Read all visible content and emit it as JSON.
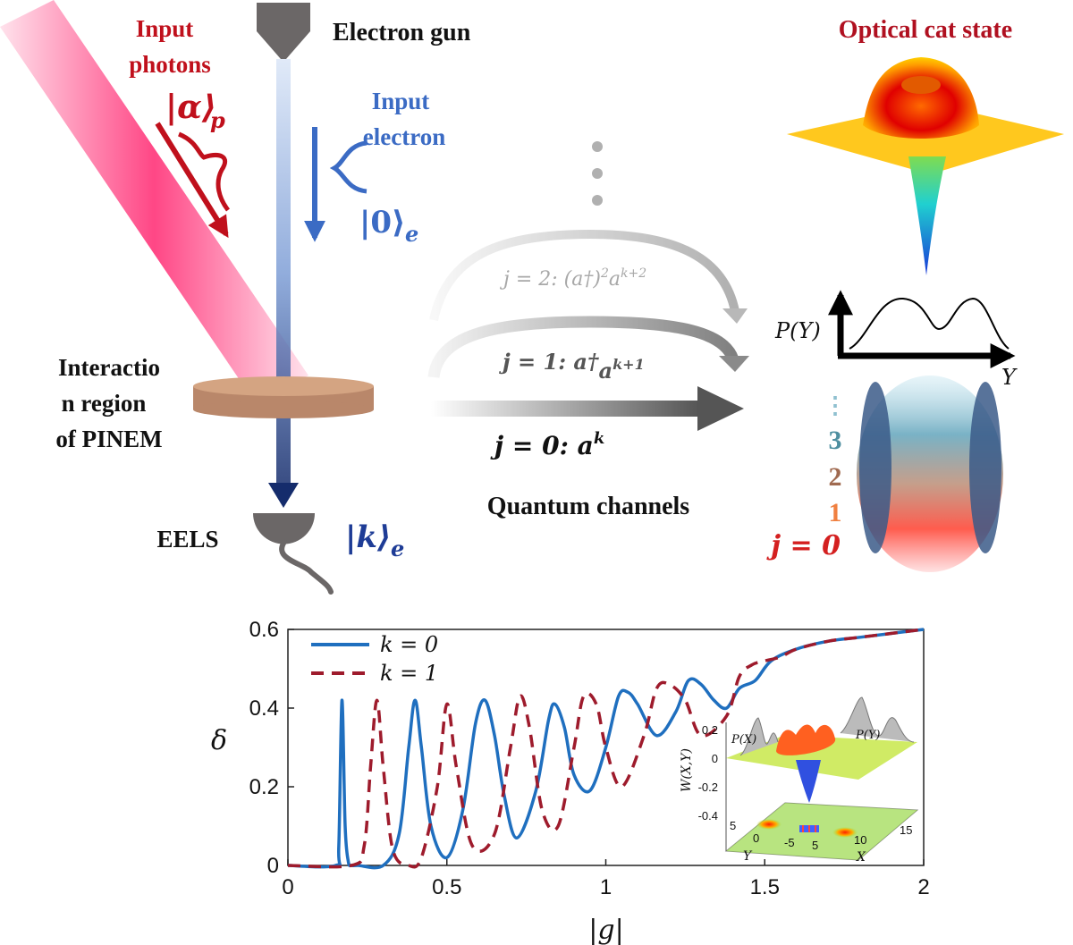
{
  "diagram": {
    "labels": {
      "input_photons_1": "Input",
      "input_photons_2": "photons",
      "input_photons_ket": "|α⟩",
      "input_photons_ket_sub": "p",
      "electron_gun": "Electron gun",
      "input_electron_1": "Input",
      "input_electron_2": "electron",
      "input_electron_ket": "|0⟩",
      "input_electron_ket_sub": "e",
      "interaction_1": "Interactio",
      "interaction_2": "n region",
      "interaction_3": "of PINEM",
      "eels": "EELS",
      "output_ket": "|k⟩",
      "output_ket_sub": "e",
      "optical_cat_state": "Optical cat state",
      "quantum_channels": "Quantum channels",
      "py_axis_label": "P(Y)",
      "y_axis_label": "Y"
    },
    "channels": [
      {
        "j_label": "j = 2:",
        "op": "(a†)",
        "op_sup": "2",
        "op2": "a",
        "op2_sup": "k+2",
        "color": "#a8a8a8"
      },
      {
        "j_label": "j = 1:",
        "op": "a†",
        "op_sup": "",
        "op2": "a",
        "op2_sup": "k+1",
        "color": "#555555"
      },
      {
        "j_label": "j = 0:",
        "op": "a",
        "op_sup": "k",
        "op2": "",
        "op2_sup": "",
        "color": "#111111"
      }
    ],
    "j_levels": [
      {
        "label": "⋮",
        "color": "#8fc0d0"
      },
      {
        "label": "3",
        "color": "#4f8fa0"
      },
      {
        "label": "2",
        "color": "#a06a50"
      },
      {
        "label": "1",
        "color": "#f08040"
      },
      {
        "label": "j = 0",
        "color": "#d42020"
      }
    ],
    "colors": {
      "photon": "#c0101c",
      "electron": "#3b6bc4",
      "laser": "#ff5a8c",
      "plate": "#c8946c"
    }
  },
  "chart_data": {
    "type": "line",
    "xlabel": "|g|",
    "ylabel": "δ",
    "xlim": [
      0,
      2
    ],
    "ylim": [
      0,
      0.6
    ],
    "xticks": [
      "0",
      "0.5",
      "1",
      "1.5",
      "2"
    ],
    "yticks": [
      "0",
      "0.2",
      "0.4",
      "0.6"
    ],
    "legend_position": "top-left",
    "series": [
      {
        "name": "k = 0",
        "style": "solid",
        "color": "#1f6fbf",
        "x": [
          0,
          0.15,
          0.16,
          0.17,
          0.18,
          0.19,
          0.2,
          0.22,
          0.3,
          0.35,
          0.38,
          0.4,
          0.42,
          0.45,
          0.5,
          0.55,
          0.59,
          0.62,
          0.65,
          0.68,
          0.72,
          0.78,
          0.82,
          0.84,
          0.87,
          0.9,
          0.95,
          1.0,
          1.04,
          1.07,
          1.1,
          1.16,
          1.22,
          1.26,
          1.3,
          1.34,
          1.38,
          1.42,
          1.47,
          1.52,
          1.6,
          1.7,
          1.8,
          1.9,
          2.0
        ],
        "y": [
          0,
          0,
          0.05,
          0.42,
          0.1,
          0.01,
          0,
          0,
          0,
          0.08,
          0.3,
          0.42,
          0.3,
          0.1,
          0.02,
          0.14,
          0.36,
          0.42,
          0.33,
          0.18,
          0.07,
          0.19,
          0.37,
          0.41,
          0.35,
          0.23,
          0.19,
          0.3,
          0.43,
          0.44,
          0.41,
          0.33,
          0.39,
          0.47,
          0.46,
          0.42,
          0.4,
          0.45,
          0.47,
          0.52,
          0.55,
          0.57,
          0.58,
          0.59,
          0.6
        ]
      },
      {
        "name": "k = 1",
        "style": "dashed",
        "color": "#9e1b2c",
        "x": [
          0,
          0.2,
          0.24,
          0.26,
          0.28,
          0.3,
          0.33,
          0.38,
          0.42,
          0.47,
          0.5,
          0.53,
          0.58,
          0.65,
          0.7,
          0.73,
          0.76,
          0.8,
          0.85,
          0.9,
          0.93,
          0.97,
          1.0,
          1.05,
          1.12,
          1.16,
          1.2,
          1.25,
          1.3,
          1.38,
          1.42,
          1.46,
          1.5,
          1.55,
          1.6,
          1.7,
          1.8,
          1.9,
          2.0
        ],
        "y": [
          0,
          0,
          0.05,
          0.25,
          0.42,
          0.25,
          0.04,
          0,
          0.02,
          0.2,
          0.41,
          0.25,
          0.05,
          0.08,
          0.3,
          0.43,
          0.35,
          0.14,
          0.1,
          0.3,
          0.43,
          0.41,
          0.3,
          0.2,
          0.33,
          0.45,
          0.46,
          0.42,
          0.33,
          0.38,
          0.48,
          0.51,
          0.52,
          0.53,
          0.55,
          0.57,
          0.58,
          0.59,
          0.6
        ]
      }
    ],
    "inset": {
      "ylabel": "W(X,Y)",
      "xlabel": "X",
      "ylabel2": "Y",
      "zticks": [
        "0.2",
        "0",
        "-0.2",
        "-0.4"
      ],
      "xticks": [
        "-5",
        "5",
        "10",
        "15"
      ],
      "yticks": [
        "5",
        "0"
      ],
      "px_label": "P(X)",
      "py_label": "P(Y)"
    }
  }
}
